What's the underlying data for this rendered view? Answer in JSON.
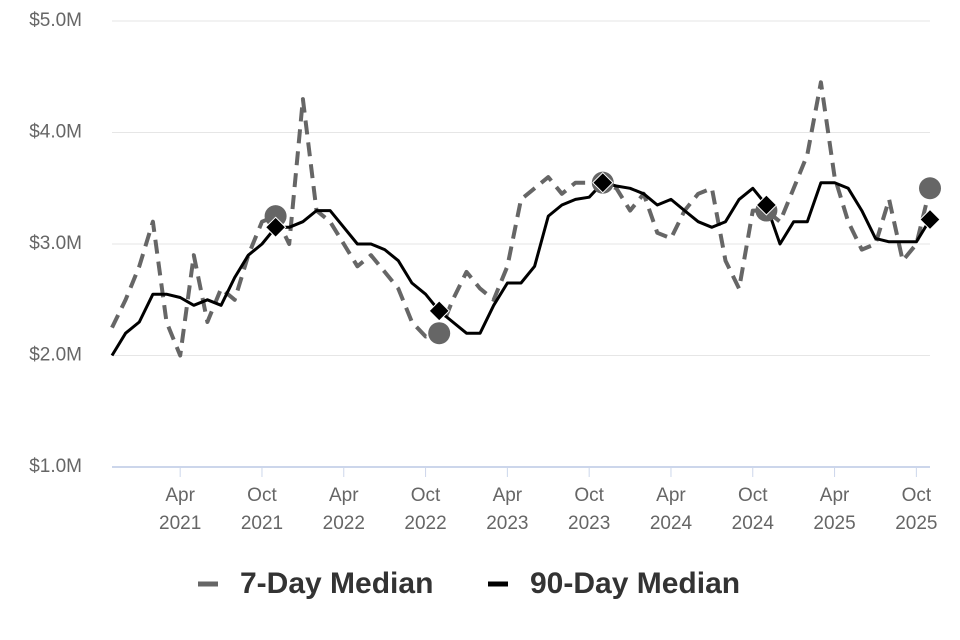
{
  "chart_data": {
    "type": "line",
    "x": [
      "2020-11",
      "2020-12",
      "2021-01",
      "2021-02",
      "2021-03",
      "2021-04",
      "2021-05",
      "2021-06",
      "2021-07",
      "2021-08",
      "2021-09",
      "2021-10",
      "2021-11",
      "2021-12",
      "2022-01",
      "2022-02",
      "2022-03",
      "2022-04",
      "2022-05",
      "2022-06",
      "2022-07",
      "2022-08",
      "2022-09",
      "2022-10",
      "2022-11",
      "2022-12",
      "2023-01",
      "2023-02",
      "2023-03",
      "2023-04",
      "2023-05",
      "2023-06",
      "2023-07",
      "2023-08",
      "2023-09",
      "2023-10",
      "2023-11",
      "2023-12",
      "2024-01",
      "2024-02",
      "2024-03",
      "2024-04",
      "2024-05",
      "2024-06",
      "2024-07",
      "2024-08",
      "2024-09",
      "2024-10",
      "2024-11",
      "2024-12",
      "2025-01",
      "2025-02",
      "2025-03",
      "2025-04",
      "2025-05",
      "2025-06",
      "2025-07",
      "2025-08",
      "2025-09",
      "2025-10",
      "2025-11"
    ],
    "series": [
      {
        "name": "7-Day Median",
        "color": "#666666",
        "values": [
          2250000,
          2500000,
          2800000,
          3200000,
          2300000,
          2000000,
          2900000,
          2300000,
          2600000,
          2500000,
          2900000,
          3200000,
          3250000,
          3000000,
          4300000,
          3300000,
          3200000,
          3000000,
          2800000,
          2900000,
          2750000,
          2600000,
          2300000,
          2170000,
          2200000,
          2500000,
          2750000,
          2600000,
          2500000,
          2800000,
          3400000,
          3500000,
          3600000,
          3450000,
          3550000,
          3550000,
          3550000,
          3500000,
          3300000,
          3450000,
          3100000,
          3050000,
          3300000,
          3450000,
          3500000,
          2850000,
          2600000,
          3300000,
          3300000,
          3200000,
          3500000,
          3800000,
          4450000,
          3600000,
          3200000,
          2950000,
          3000000,
          3400000,
          2850000,
          3000000,
          3500000
        ]
      },
      {
        "name": "90-Day Median",
        "color": "#000000",
        "values": [
          2000000,
          2200000,
          2300000,
          2550000,
          2550000,
          2520000,
          2450000,
          2500000,
          2450000,
          2700000,
          2900000,
          3000000,
          3150000,
          3150000,
          3200000,
          3300000,
          3300000,
          3150000,
          3000000,
          3000000,
          2950000,
          2850000,
          2650000,
          2550000,
          2400000,
          2300000,
          2200000,
          2200000,
          2450000,
          2650000,
          2650000,
          2800000,
          3250000,
          3350000,
          3400000,
          3420000,
          3550000,
          3520000,
          3500000,
          3450000,
          3350000,
          3400000,
          3300000,
          3200000,
          3150000,
          3200000,
          3400000,
          3500000,
          3350000,
          3000000,
          3200000,
          3200000,
          3550000,
          3550000,
          3500000,
          3300000,
          3050000,
          3020000,
          3020000,
          3020000,
          3220000
        ]
      }
    ],
    "xlim": [
      "2020-11",
      "2025-11"
    ],
    "xticks": [
      {
        "value": "2021-04",
        "label": "Apr 2021"
      },
      {
        "value": "2021-10",
        "label": "Oct 2021"
      },
      {
        "value": "2022-04",
        "label": "Apr 2022"
      },
      {
        "value": "2022-10",
        "label": "Oct 2022"
      },
      {
        "value": "2023-04",
        "label": "Apr 2023"
      },
      {
        "value": "2023-10",
        "label": "Oct 2023"
      },
      {
        "value": "2024-04",
        "label": "Apr 2024"
      },
      {
        "value": "2024-10",
        "label": "Oct 2024"
      },
      {
        "value": "2025-04",
        "label": "Apr 2025"
      },
      {
        "value": "2025-10",
        "label": "Oct 2025"
      }
    ],
    "ylim": [
      1000000,
      5000000
    ],
    "yticks": [
      {
        "value": 1000000,
        "label": "$1.0M"
      },
      {
        "value": 2000000,
        "label": "$2.0M"
      },
      {
        "value": 3000000,
        "label": "$3.0M"
      },
      {
        "value": 4000000,
        "label": "$4.0M"
      },
      {
        "value": 5000000,
        "label": "$5.0M"
      }
    ],
    "grid": true,
    "legend": "bottom"
  }
}
